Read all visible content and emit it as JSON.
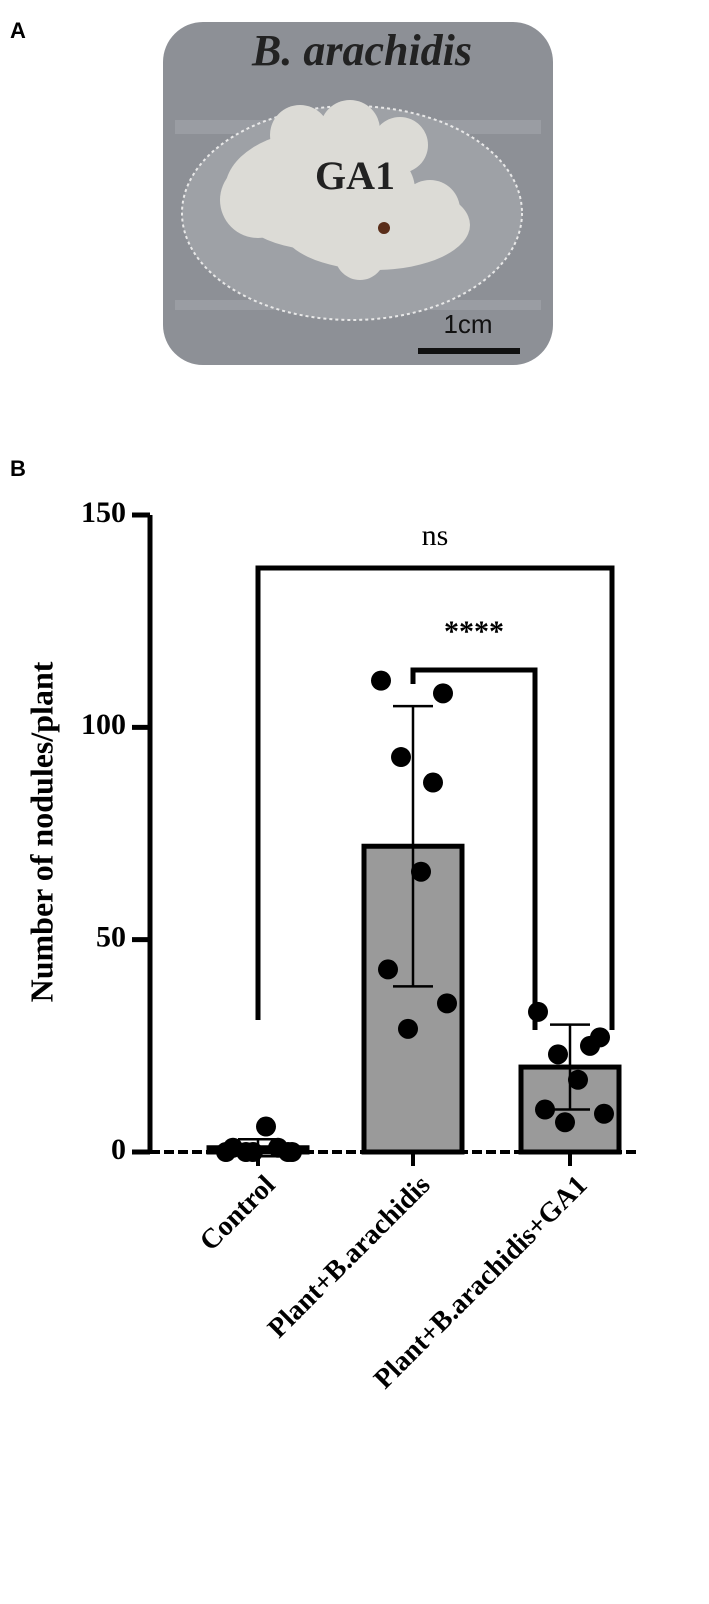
{
  "panel_a": {
    "label": "A",
    "title": "B. arachidis",
    "colony_label": "GA1",
    "scale_bar": "1cm"
  },
  "panel_b": {
    "label": "B"
  },
  "chart_data": {
    "type": "bar",
    "y_label": "Number of nodules/plant",
    "categories": [
      "Control",
      "Plant+B.arachidis",
      "Plant+B.arachidis+GA1"
    ],
    "values": [
      1,
      72,
      20
    ],
    "errors": [
      2,
      33,
      10
    ],
    "points": [
      [
        0,
        0,
        0,
        1,
        6,
        1,
        0,
        0
      ],
      [
        111,
        108,
        93,
        87,
        66,
        43,
        35,
        29
      ],
      [
        33,
        27,
        23,
        25,
        17,
        10,
        9,
        7
      ]
    ],
    "color": "#9a9a9a",
    "ylim": [
      0,
      150
    ],
    "yticks": [
      0,
      50,
      100,
      150
    ],
    "annotations": [
      "ns",
      "****"
    ]
  }
}
